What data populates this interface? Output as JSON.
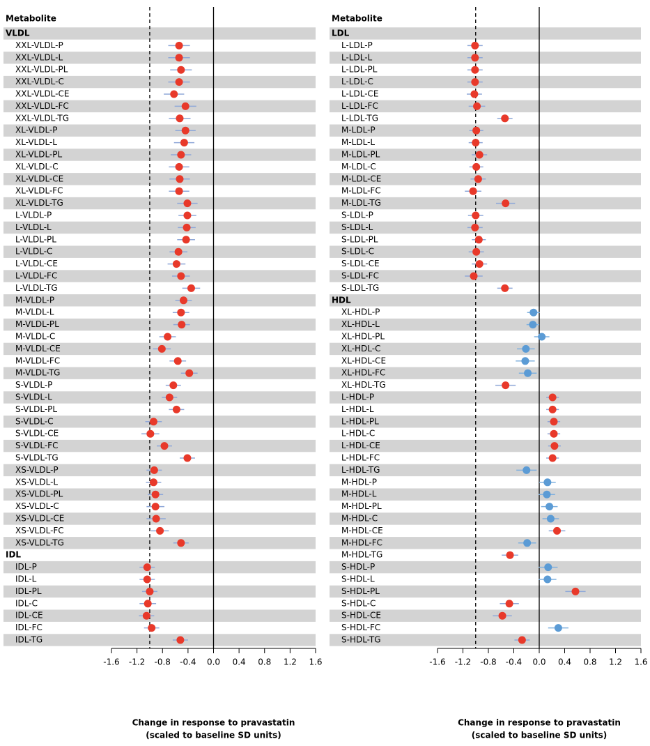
{
  "chart_data": [
    {
      "type": "forest",
      "title": "Metabolite",
      "xlabel": [
        "Change in response to pravastatin",
        "(scaled to baseline SD units)"
      ],
      "xlim": [
        -1.6,
        1.6
      ],
      "xticks": [
        -1.6,
        -1.2,
        -0.8,
        -0.4,
        {
          "value": 0,
          "label": "0.0"
        },
        0.4,
        0.8,
        1.2,
        1.6
      ],
      "reference_lines": [
        {
          "value": -1,
          "style": "dashed"
        },
        {
          "value": 0,
          "style": "solid"
        }
      ],
      "groups": [
        {
          "name": "VLDL",
          "categories": [
            "XXL-VLDL-P",
            "XXL-VLDL-L",
            "XXL-VLDL-PL",
            "XXL-VLDL-C",
            "XXL-VLDL-CE",
            "XXL-VLDL-FC",
            "XXL-VLDL-TG",
            "XL-VLDL-P",
            "XL-VLDL-L",
            "XL-VLDL-PL",
            "XL-VLDL-C",
            "XL-VLDL-CE",
            "XL-VLDL-FC",
            "XL-VLDL-TG",
            "L-VLDL-P",
            "L-VLDL-L",
            "L-VLDL-PL",
            "L-VLDL-C",
            "L-VLDL-CE",
            "L-VLDL-FC",
            "L-VLDL-TG",
            "M-VLDL-P",
            "M-VLDL-L",
            "M-VLDL-PL",
            "M-VLDL-C",
            "M-VLDL-CE",
            "M-VLDL-FC",
            "M-VLDL-TG",
            "S-VLDL-P",
            "S-VLDL-L",
            "S-VLDL-PL",
            "S-VLDL-C",
            "S-VLDL-CE",
            "S-VLDL-FC",
            "S-VLDL-TG",
            "XS-VLDL-P",
            "XS-VLDL-L",
            "XS-VLDL-PL",
            "XS-VLDL-C",
            "XS-VLDL-CE",
            "XS-VLDL-FC",
            "XS-VLDL-TG"
          ],
          "values": [
            -0.54,
            -0.54,
            -0.51,
            -0.54,
            -0.62,
            -0.44,
            -0.53,
            -0.44,
            -0.46,
            -0.51,
            -0.54,
            -0.53,
            -0.54,
            -0.41,
            -0.41,
            -0.42,
            -0.43,
            -0.55,
            -0.58,
            -0.51,
            -0.35,
            -0.47,
            -0.51,
            -0.5,
            -0.72,
            -0.81,
            -0.56,
            -0.38,
            -0.63,
            -0.69,
            -0.58,
            -0.94,
            -0.99,
            -0.77,
            -0.41,
            -0.93,
            -0.94,
            -0.91,
            -0.91,
            -0.9,
            -0.84,
            -0.51
          ],
          "errors": [
            0.17,
            0.17,
            0.17,
            0.17,
            0.16,
            0.17,
            0.17,
            0.16,
            0.16,
            0.16,
            0.16,
            0.16,
            0.16,
            0.16,
            0.14,
            0.14,
            0.14,
            0.14,
            0.14,
            0.14,
            0.14,
            0.13,
            0.13,
            0.13,
            0.13,
            0.14,
            0.13,
            0.13,
            0.12,
            0.12,
            0.12,
            0.13,
            0.14,
            0.12,
            0.12,
            0.12,
            0.12,
            0.12,
            0.14,
            0.15,
            0.14,
            0.12
          ],
          "colors": [
            "#e8392a",
            "#e8392a",
            "#e8392a",
            "#e8392a",
            "#e8392a",
            "#e8392a",
            "#e8392a",
            "#e8392a",
            "#e8392a",
            "#e8392a",
            "#e8392a",
            "#e8392a",
            "#e8392a",
            "#e8392a",
            "#e8392a",
            "#e8392a",
            "#e8392a",
            "#e8392a",
            "#e8392a",
            "#e8392a",
            "#e8392a",
            "#e8392a",
            "#e8392a",
            "#e8392a",
            "#e8392a",
            "#e8392a",
            "#e8392a",
            "#e8392a",
            "#e8392a",
            "#e8392a",
            "#e8392a",
            "#e8392a",
            "#e8392a",
            "#e8392a",
            "#e8392a",
            "#e8392a",
            "#e8392a",
            "#e8392a",
            "#e8392a",
            "#e8392a",
            "#e8392a",
            "#e8392a"
          ]
        },
        {
          "name": "IDL",
          "categories": [
            "IDL-P",
            "IDL-L",
            "IDL-PL",
            "IDL-C",
            "IDL-CE",
            "IDL-FC",
            "IDL-TG"
          ],
          "values": [
            -1.04,
            -1.04,
            -1.0,
            -1.03,
            -1.05,
            -0.97,
            -0.52
          ],
          "errors": [
            0.12,
            0.12,
            0.12,
            0.13,
            0.12,
            0.12,
            0.12
          ],
          "colors": [
            "#e8392a",
            "#e8392a",
            "#e8392a",
            "#e8392a",
            "#e8392a",
            "#e8392a",
            "#e8392a"
          ]
        }
      ]
    },
    {
      "type": "forest",
      "title": "Metabolite",
      "xlabel": [
        "Change in response to pravastatin",
        "(scaled to baseline SD units)"
      ],
      "xlim": [
        -1.6,
        1.6
      ],
      "xticks": [
        -1.6,
        -1.2,
        -0.8,
        -0.4,
        {
          "value": 0,
          "label": "0.0"
        },
        0.4,
        0.8,
        1.2,
        1.6
      ],
      "reference_lines": [
        {
          "value": -1,
          "style": "dashed"
        },
        {
          "value": 0,
          "style": "solid"
        }
      ],
      "groups": [
        {
          "name": "LDL",
          "categories": [
            "L-LDL-P",
            "L-LDL-L",
            "L-LDL-PL",
            "L-LDL-C",
            "L-LDL-CE",
            "L-LDL-FC",
            "L-LDL-TG",
            "M-LDL-P",
            "M-LDL-L",
            "M-LDL-PL",
            "M-LDL-C",
            "M-LDL-CE",
            "M-LDL-FC",
            "M-LDL-TG",
            "S-LDL-P",
            "S-LDL-L",
            "S-LDL-PL",
            "S-LDL-C",
            "S-LDL-CE",
            "S-LDL-FC",
            "S-LDL-TG"
          ],
          "values": [
            -1.01,
            -1.01,
            -1.01,
            -1.01,
            -1.02,
            -0.98,
            -0.54,
            -0.99,
            -1.0,
            -0.94,
            -0.99,
            -0.96,
            -1.04,
            -0.53,
            -1.0,
            -1.01,
            -0.95,
            -0.99,
            -0.94,
            -1.03,
            -0.54
          ],
          "errors": [
            0.12,
            0.12,
            0.12,
            0.12,
            0.12,
            0.13,
            0.12,
            0.11,
            0.11,
            0.12,
            0.11,
            0.12,
            0.13,
            0.15,
            0.12,
            0.12,
            0.11,
            0.12,
            0.12,
            0.14,
            0.12
          ],
          "colors": [
            "#e8392a",
            "#e8392a",
            "#e8392a",
            "#e8392a",
            "#e8392a",
            "#e8392a",
            "#e8392a",
            "#e8392a",
            "#e8392a",
            "#e8392a",
            "#e8392a",
            "#e8392a",
            "#e8392a",
            "#e8392a",
            "#e8392a",
            "#e8392a",
            "#e8392a",
            "#e8392a",
            "#e8392a",
            "#e8392a",
            "#e8392a"
          ]
        },
        {
          "name": "HDL",
          "categories": [
            "XL-HDL-P",
            "XL-HDL-L",
            "XL-HDL-PL",
            "XL-HDL-C",
            "XL-HDL-CE",
            "XL-HDL-FC",
            "XL-HDL-TG",
            "L-HDL-P",
            "L-HDL-L",
            "L-HDL-PL",
            "L-HDL-C",
            "L-HDL-CE",
            "L-HDL-FC",
            "L-HDL-TG",
            "M-HDL-P",
            "M-HDL-L",
            "M-HDL-PL",
            "M-HDL-C",
            "M-HDL-CE",
            "M-HDL-FC",
            "M-HDL-TG",
            "S-HDL-P",
            "S-HDL-L",
            "S-HDL-PL",
            "S-HDL-C",
            "S-HDL-CE",
            "S-HDL-FC",
            "S-HDL-TG"
          ],
          "values": [
            -0.09,
            -0.1,
            0.04,
            -0.21,
            -0.22,
            -0.18,
            -0.53,
            0.21,
            0.21,
            0.23,
            0.23,
            0.24,
            0.21,
            -0.2,
            0.13,
            0.12,
            0.16,
            0.18,
            0.28,
            -0.19,
            -0.46,
            0.14,
            0.13,
            0.57,
            -0.47,
            -0.58,
            0.3,
            -0.27
          ],
          "errors": [
            0.1,
            0.1,
            0.12,
            0.14,
            0.15,
            0.14,
            0.16,
            0.1,
            0.1,
            0.1,
            0.1,
            0.1,
            0.1,
            0.16,
            0.13,
            0.13,
            0.13,
            0.13,
            0.13,
            0.14,
            0.13,
            0.15,
            0.14,
            0.16,
            0.15,
            0.15,
            0.16,
            0.12
          ],
          "colors": [
            "#5b9bd5",
            "#5b9bd5",
            "#5b9bd5",
            "#5b9bd5",
            "#5b9bd5",
            "#5b9bd5",
            "#e8392a",
            "#e8392a",
            "#e8392a",
            "#e8392a",
            "#e8392a",
            "#e8392a",
            "#e8392a",
            "#5b9bd5",
            "#5b9bd5",
            "#5b9bd5",
            "#5b9bd5",
            "#5b9bd5",
            "#e8392a",
            "#5b9bd5",
            "#e8392a",
            "#5b9bd5",
            "#5b9bd5",
            "#e8392a",
            "#e8392a",
            "#e8392a",
            "#5b9bd5",
            "#e8392a"
          ]
        }
      ]
    }
  ]
}
